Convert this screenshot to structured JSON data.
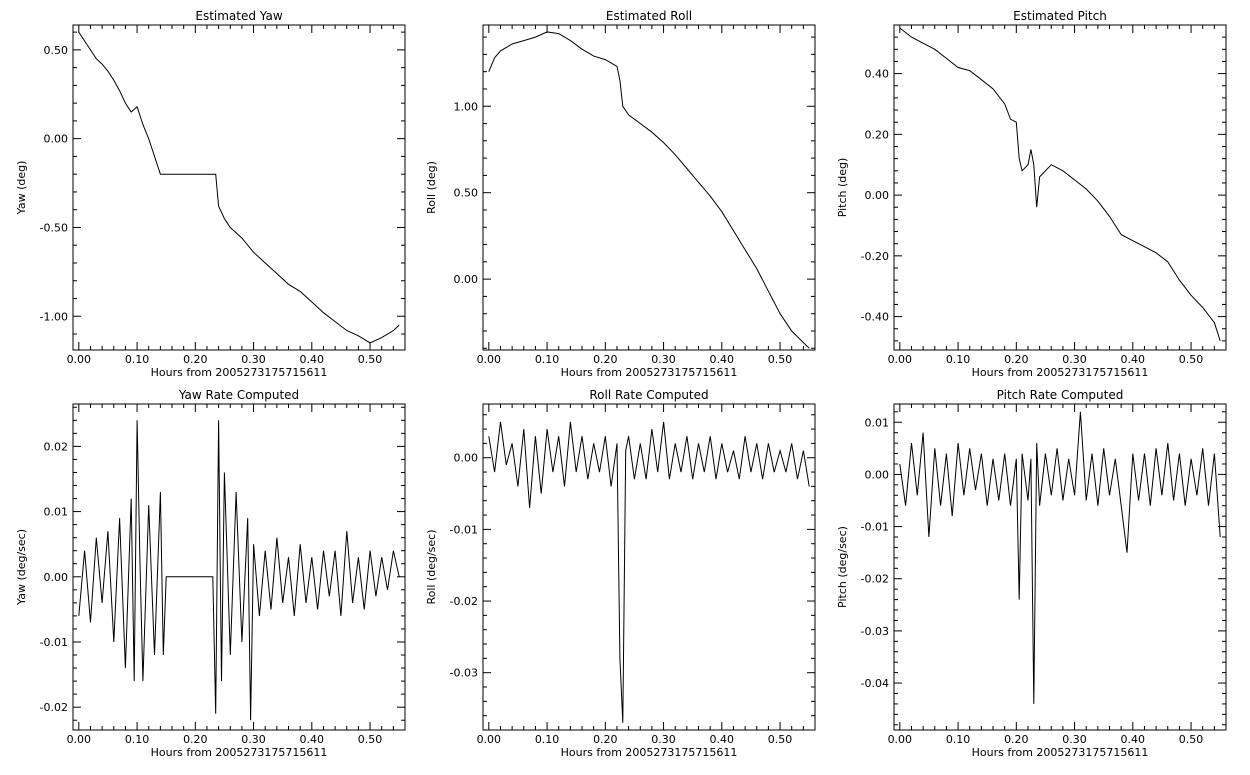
{
  "chart_data": [
    {
      "type": "line",
      "title": "Estimated Yaw",
      "xlabel": "Hours from 2005273175715611",
      "ylabel": "Yaw (deg)",
      "xlim": [
        -0.01,
        0.56
      ],
      "ylim": [
        -1.19,
        0.64
      ],
      "xticks": [
        0.0,
        0.1,
        0.2,
        0.3,
        0.4,
        0.5
      ],
      "xtick_labels": [
        "0.00",
        "0.10",
        "0.20",
        "0.30",
        "0.40",
        "0.50"
      ],
      "yticks": [
        -1.0,
        -0.5,
        0.0,
        0.5
      ],
      "ytick_labels": [
        "-1.00",
        "-0.50",
        "0.00",
        "0.50"
      ],
      "series": [
        {
          "x": [
            0.0,
            0.01,
            0.02,
            0.03,
            0.04,
            0.05,
            0.06,
            0.07,
            0.08,
            0.09,
            0.1,
            0.11,
            0.12,
            0.13,
            0.14,
            0.15,
            0.2,
            0.235,
            0.24,
            0.25,
            0.26,
            0.28,
            0.3,
            0.32,
            0.34,
            0.36,
            0.38,
            0.4,
            0.42,
            0.44,
            0.46,
            0.48,
            0.5,
            0.52,
            0.54,
            0.55
          ],
          "y": [
            0.6,
            0.55,
            0.5,
            0.45,
            0.42,
            0.38,
            0.33,
            0.27,
            0.2,
            0.15,
            0.18,
            0.08,
            0.0,
            -0.1,
            -0.2,
            -0.2,
            -0.2,
            -0.2,
            -0.38,
            -0.45,
            -0.5,
            -0.56,
            -0.64,
            -0.7,
            -0.76,
            -0.82,
            -0.86,
            -0.92,
            -0.98,
            -1.03,
            -1.08,
            -1.11,
            -1.15,
            -1.12,
            -1.08,
            -1.05
          ]
        }
      ]
    },
    {
      "type": "line",
      "title": "Estimated Roll",
      "xlabel": "Hours from 2005273175715611",
      "ylabel": "Roll (deg)",
      "xlim": [
        -0.01,
        0.56
      ],
      "ylim": [
        -0.41,
        1.47
      ],
      "xticks": [
        0.0,
        0.1,
        0.2,
        0.3,
        0.4,
        0.5
      ],
      "xtick_labels": [
        "0.00",
        "0.10",
        "0.20",
        "0.30",
        "0.40",
        "0.50"
      ],
      "yticks": [
        0.0,
        0.5,
        1.0
      ],
      "ytick_labels": [
        "0.00",
        "0.50",
        "1.00"
      ],
      "series": [
        {
          "x": [
            0.0,
            0.01,
            0.02,
            0.04,
            0.06,
            0.08,
            0.1,
            0.12,
            0.14,
            0.16,
            0.18,
            0.2,
            0.22,
            0.225,
            0.23,
            0.24,
            0.26,
            0.28,
            0.3,
            0.32,
            0.34,
            0.36,
            0.38,
            0.4,
            0.42,
            0.44,
            0.46,
            0.48,
            0.5,
            0.52,
            0.55
          ],
          "y": [
            1.2,
            1.28,
            1.32,
            1.36,
            1.38,
            1.4,
            1.43,
            1.42,
            1.38,
            1.33,
            1.29,
            1.27,
            1.23,
            1.15,
            1.0,
            0.95,
            0.9,
            0.85,
            0.79,
            0.72,
            0.64,
            0.56,
            0.48,
            0.39,
            0.28,
            0.17,
            0.06,
            -0.07,
            -0.2,
            -0.3,
            -0.4
          ]
        }
      ]
    },
    {
      "type": "line",
      "title": "Estimated Pitch",
      "xlabel": "Hours from 2005273175715611",
      "ylabel": "Pitch (deg)",
      "xlim": [
        -0.01,
        0.56
      ],
      "ylim": [
        -0.51,
        0.56
      ],
      "xticks": [
        0.0,
        0.1,
        0.2,
        0.3,
        0.4,
        0.5
      ],
      "xtick_labels": [
        "0.00",
        "0.10",
        "0.20",
        "0.30",
        "0.40",
        "0.50"
      ],
      "yticks": [
        -0.4,
        -0.2,
        0.0,
        0.2,
        0.4
      ],
      "ytick_labels": [
        "-0.40",
        "-0.20",
        "0.00",
        "0.20",
        "0.40"
      ],
      "series": [
        {
          "x": [
            0.0,
            0.02,
            0.04,
            0.06,
            0.08,
            0.1,
            0.12,
            0.14,
            0.16,
            0.18,
            0.19,
            0.2,
            0.205,
            0.21,
            0.22,
            0.225,
            0.23,
            0.235,
            0.24,
            0.26,
            0.28,
            0.3,
            0.32,
            0.34,
            0.36,
            0.38,
            0.4,
            0.42,
            0.44,
            0.46,
            0.48,
            0.5,
            0.52,
            0.54,
            0.55
          ],
          "y": [
            0.55,
            0.52,
            0.5,
            0.48,
            0.45,
            0.42,
            0.41,
            0.38,
            0.35,
            0.3,
            0.25,
            0.24,
            0.12,
            0.08,
            0.1,
            0.15,
            0.1,
            -0.04,
            0.06,
            0.1,
            0.08,
            0.05,
            0.02,
            -0.02,
            -0.07,
            -0.13,
            -0.15,
            -0.17,
            -0.19,
            -0.22,
            -0.28,
            -0.33,
            -0.37,
            -0.42,
            -0.48
          ]
        }
      ]
    },
    {
      "type": "line",
      "title": "Yaw Rate Computed",
      "xlabel": "Hours from 2005273175715611",
      "ylabel": "Yaw (deg/sec)",
      "xlim": [
        -0.01,
        0.56
      ],
      "ylim": [
        -0.0235,
        0.0265
      ],
      "xticks": [
        0.0,
        0.1,
        0.2,
        0.3,
        0.4,
        0.5
      ],
      "xtick_labels": [
        "0.00",
        "0.10",
        "0.20",
        "0.30",
        "0.40",
        "0.50"
      ],
      "yticks": [
        -0.02,
        -0.01,
        0.0,
        0.01,
        0.02
      ],
      "ytick_labels": [
        "-0.02",
        "-0.01",
        "0.00",
        "0.01",
        "0.02"
      ],
      "series": [
        {
          "x": [
            0.0,
            0.01,
            0.02,
            0.03,
            0.04,
            0.05,
            0.06,
            0.07,
            0.08,
            0.09,
            0.095,
            0.1,
            0.105,
            0.11,
            0.12,
            0.13,
            0.14,
            0.145,
            0.15,
            0.23,
            0.235,
            0.24,
            0.245,
            0.25,
            0.26,
            0.27,
            0.28,
            0.29,
            0.295,
            0.3,
            0.31,
            0.32,
            0.33,
            0.34,
            0.35,
            0.36,
            0.37,
            0.38,
            0.39,
            0.4,
            0.41,
            0.42,
            0.43,
            0.44,
            0.45,
            0.46,
            0.47,
            0.48,
            0.49,
            0.5,
            0.51,
            0.52,
            0.53,
            0.54,
            0.55
          ],
          "y": [
            -0.006,
            0.004,
            -0.007,
            0.006,
            -0.004,
            0.007,
            -0.01,
            0.009,
            -0.014,
            0.012,
            -0.016,
            0.024,
            0.002,
            -0.016,
            0.011,
            -0.012,
            0.013,
            -0.012,
            0.0,
            0.0,
            -0.021,
            0.024,
            -0.016,
            0.016,
            -0.012,
            0.013,
            -0.01,
            0.009,
            -0.022,
            0.005,
            -0.006,
            0.004,
            -0.005,
            0.006,
            -0.004,
            0.003,
            -0.006,
            0.005,
            -0.004,
            0.003,
            -0.005,
            0.004,
            -0.003,
            0.004,
            -0.006,
            0.007,
            -0.004,
            0.003,
            -0.005,
            0.004,
            -0.003,
            0.003,
            -0.002,
            0.004,
            0.0
          ]
        }
      ]
    },
    {
      "type": "line",
      "title": "Roll Rate Computed",
      "xlabel": "Hours from 2005273175715611",
      "ylabel": "Roll (deg/sec)",
      "xlim": [
        -0.01,
        0.56
      ],
      "ylim": [
        -0.038,
        0.0075
      ],
      "xticks": [
        0.0,
        0.1,
        0.2,
        0.3,
        0.4,
        0.5
      ],
      "xtick_labels": [
        "0.00",
        "0.10",
        "0.20",
        "0.30",
        "0.40",
        "0.50"
      ],
      "yticks": [
        -0.03,
        -0.02,
        -0.01,
        0.0
      ],
      "ytick_labels": [
        "-0.03",
        "-0.02",
        "-0.01",
        "0.00"
      ],
      "series": [
        {
          "x": [
            0.0,
            0.01,
            0.02,
            0.03,
            0.04,
            0.05,
            0.06,
            0.07,
            0.08,
            0.09,
            0.1,
            0.11,
            0.12,
            0.13,
            0.14,
            0.15,
            0.16,
            0.17,
            0.18,
            0.19,
            0.2,
            0.21,
            0.22,
            0.225,
            0.23,
            0.235,
            0.24,
            0.25,
            0.26,
            0.27,
            0.28,
            0.29,
            0.3,
            0.31,
            0.32,
            0.33,
            0.34,
            0.35,
            0.36,
            0.37,
            0.38,
            0.39,
            0.4,
            0.41,
            0.42,
            0.43,
            0.44,
            0.45,
            0.46,
            0.47,
            0.48,
            0.49,
            0.5,
            0.51,
            0.52,
            0.53,
            0.54,
            0.55
          ],
          "y": [
            0.003,
            -0.002,
            0.005,
            -0.001,
            0.002,
            -0.004,
            0.004,
            -0.007,
            0.003,
            -0.005,
            0.004,
            -0.002,
            0.003,
            -0.004,
            0.005,
            -0.002,
            0.003,
            -0.003,
            0.002,
            -0.002,
            0.003,
            -0.004,
            0.002,
            -0.028,
            -0.037,
            0.001,
            0.003,
            -0.003,
            0.002,
            -0.003,
            0.004,
            -0.002,
            0.005,
            -0.003,
            0.002,
            -0.002,
            0.003,
            -0.003,
            0.002,
            -0.002,
            0.003,
            -0.003,
            0.002,
            -0.002,
            0.001,
            -0.003,
            0.003,
            -0.002,
            0.002,
            -0.003,
            0.002,
            -0.002,
            0.001,
            -0.002,
            0.002,
            -0.003,
            0.001,
            -0.004
          ]
        }
      ]
    },
    {
      "type": "line",
      "title": "Pitch Rate Computed",
      "xlabel": "Hours from 2005273175715611",
      "ylabel": "Pitch (deg/sec)",
      "xlim": [
        -0.01,
        0.56
      ],
      "ylim": [
        -0.049,
        0.0135
      ],
      "xticks": [
        0.0,
        0.1,
        0.2,
        0.3,
        0.4,
        0.5
      ],
      "xtick_labels": [
        "0.00",
        "0.10",
        "0.20",
        "0.30",
        "0.40",
        "0.50"
      ],
      "yticks": [
        -0.04,
        -0.03,
        -0.02,
        -0.01,
        0.0,
        0.01
      ],
      "ytick_labels": [
        "-0.04",
        "-0.03",
        "-0.02",
        "-0.01",
        "0.00",
        "0.01"
      ],
      "series": [
        {
          "x": [
            0.0,
            0.01,
            0.02,
            0.03,
            0.04,
            0.05,
            0.06,
            0.07,
            0.08,
            0.09,
            0.1,
            0.11,
            0.12,
            0.13,
            0.14,
            0.15,
            0.16,
            0.17,
            0.18,
            0.19,
            0.2,
            0.205,
            0.21,
            0.22,
            0.225,
            0.23,
            0.235,
            0.24,
            0.25,
            0.26,
            0.27,
            0.28,
            0.29,
            0.3,
            0.31,
            0.32,
            0.33,
            0.34,
            0.35,
            0.36,
            0.37,
            0.38,
            0.39,
            0.4,
            0.41,
            0.42,
            0.43,
            0.44,
            0.45,
            0.46,
            0.47,
            0.48,
            0.49,
            0.5,
            0.51,
            0.52,
            0.53,
            0.54,
            0.55
          ],
          "y": [
            0.002,
            -0.006,
            0.006,
            -0.004,
            0.008,
            -0.012,
            0.005,
            -0.006,
            0.004,
            -0.008,
            0.006,
            -0.004,
            0.005,
            -0.003,
            0.004,
            -0.006,
            0.003,
            -0.005,
            0.004,
            -0.006,
            0.003,
            -0.024,
            0.004,
            -0.005,
            0.003,
            -0.044,
            0.006,
            -0.006,
            0.004,
            -0.004,
            0.005,
            -0.005,
            0.003,
            -0.004,
            0.012,
            -0.005,
            0.004,
            -0.006,
            0.005,
            -0.004,
            0.003,
            -0.006,
            -0.015,
            0.004,
            -0.005,
            0.004,
            -0.006,
            0.005,
            -0.004,
            0.006,
            -0.005,
            0.004,
            -0.006,
            0.003,
            -0.004,
            0.005,
            -0.006,
            0.004,
            -0.012
          ]
        }
      ]
    }
  ]
}
